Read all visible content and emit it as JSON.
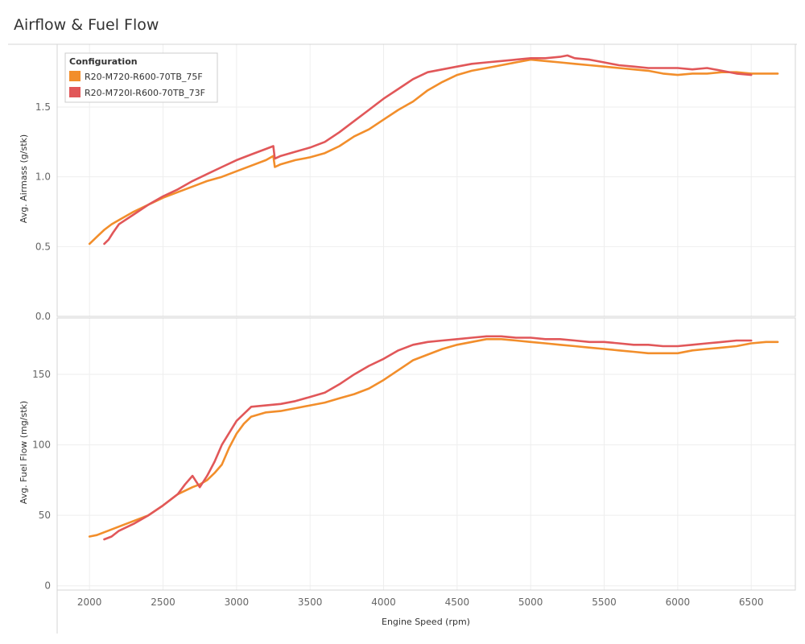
{
  "page_title": "Airflow & Fuel Flow",
  "colors": {
    "series_a": "#f28e2b",
    "series_b": "#e15759"
  },
  "chart_data": [
    {
      "type": "line",
      "ylabel": "Avg. Airmass (g/stk)",
      "xlabel": "Engine Speed (rpm)",
      "xlim": [
        1780,
        6800
      ],
      "ylim": [
        0,
        1.95
      ],
      "yticks": [
        0,
        0.5,
        1.0,
        1.5
      ],
      "ytick_labels": [
        "0.0",
        "0.5",
        "1.0",
        "1.5"
      ],
      "grid": true,
      "legend": {
        "title": "Configuration",
        "placement": "top-left",
        "entries": [
          "R20-M720-R600-70TB_75F",
          "R20-M720I-R600-70TB_73F"
        ]
      },
      "series": [
        {
          "name": "R20-M720-R600-70TB_75F",
          "color": "#f28e2b",
          "x": [
            2000,
            2050,
            2100,
            2150,
            2200,
            2300,
            2400,
            2500,
            2600,
            2700,
            2800,
            2900,
            3000,
            3100,
            3200,
            3250,
            3260,
            3300,
            3400,
            3500,
            3600,
            3700,
            3800,
            3900,
            4000,
            4100,
            4200,
            4300,
            4400,
            4500,
            4600,
            4700,
            4800,
            4900,
            5000,
            5100,
            5200,
            5300,
            5400,
            5500,
            5600,
            5700,
            5800,
            5900,
            6000,
            6100,
            6200,
            6300,
            6400,
            6500,
            6600,
            6680
          ],
          "values": [
            0.52,
            0.57,
            0.62,
            0.66,
            0.69,
            0.75,
            0.8,
            0.85,
            0.89,
            0.93,
            0.97,
            1.0,
            1.04,
            1.08,
            1.12,
            1.15,
            1.07,
            1.09,
            1.12,
            1.14,
            1.17,
            1.22,
            1.29,
            1.34,
            1.41,
            1.48,
            1.54,
            1.62,
            1.68,
            1.73,
            1.76,
            1.78,
            1.8,
            1.82,
            1.84,
            1.83,
            1.82,
            1.81,
            1.8,
            1.79,
            1.78,
            1.77,
            1.76,
            1.74,
            1.73,
            1.74,
            1.74,
            1.75,
            1.75,
            1.74,
            1.74,
            1.74
          ]
        },
        {
          "name": "R20-M720I-R600-70TB_73F",
          "color": "#e15759",
          "x": [
            2100,
            2130,
            2160,
            2200,
            2300,
            2400,
            2500,
            2600,
            2700,
            2800,
            2900,
            3000,
            3100,
            3200,
            3250,
            3260,
            3300,
            3400,
            3500,
            3600,
            3700,
            3800,
            3900,
            4000,
            4100,
            4200,
            4300,
            4400,
            4500,
            4600,
            4700,
            4800,
            4900,
            5000,
            5100,
            5200,
            5250,
            5300,
            5400,
            5500,
            5600,
            5700,
            5800,
            5900,
            6000,
            6100,
            6200,
            6300,
            6400,
            6500
          ],
          "values": [
            0.52,
            0.55,
            0.6,
            0.66,
            0.73,
            0.8,
            0.86,
            0.91,
            0.97,
            1.02,
            1.07,
            1.12,
            1.16,
            1.2,
            1.22,
            1.13,
            1.15,
            1.18,
            1.21,
            1.25,
            1.32,
            1.4,
            1.48,
            1.56,
            1.63,
            1.7,
            1.75,
            1.77,
            1.79,
            1.81,
            1.82,
            1.83,
            1.84,
            1.85,
            1.85,
            1.86,
            1.87,
            1.85,
            1.84,
            1.82,
            1.8,
            1.79,
            1.78,
            1.78,
            1.78,
            1.77,
            1.78,
            1.76,
            1.74,
            1.73
          ]
        }
      ]
    },
    {
      "type": "line",
      "ylabel": "Avg. Fuel Flow (mg/stk)",
      "xlabel": "Engine Speed (rpm)",
      "xlim": [
        1780,
        6800
      ],
      "ylim": [
        -3,
        190
      ],
      "yticks": [
        0,
        50,
        100,
        150
      ],
      "ytick_labels": [
        "0",
        "50",
        "100",
        "150"
      ],
      "xticks": [
        2000,
        2500,
        3000,
        3500,
        4000,
        4500,
        5000,
        5500,
        6000,
        6500
      ],
      "xtick_labels": [
        "2000",
        "2500",
        "3000",
        "3500",
        "4000",
        "4500",
        "5000",
        "5500",
        "6000",
        "6500"
      ],
      "grid": true,
      "series": [
        {
          "name": "R20-M720-R600-70TB_75F",
          "color": "#f28e2b",
          "x": [
            2000,
            2050,
            2100,
            2200,
            2300,
            2400,
            2500,
            2600,
            2700,
            2750,
            2800,
            2850,
            2900,
            2950,
            3000,
            3050,
            3100,
            3200,
            3300,
            3400,
            3500,
            3600,
            3700,
            3800,
            3900,
            4000,
            4100,
            4200,
            4300,
            4400,
            4500,
            4600,
            4700,
            4800,
            4900,
            5000,
            5100,
            5200,
            5300,
            5400,
            5500,
            5600,
            5700,
            5800,
            5900,
            6000,
            6100,
            6200,
            6300,
            6400,
            6500,
            6600,
            6680
          ],
          "values": [
            35,
            36,
            38,
            42,
            46,
            50,
            57,
            65,
            70,
            72,
            75,
            80,
            86,
            98,
            108,
            115,
            120,
            123,
            124,
            126,
            128,
            130,
            133,
            136,
            140,
            146,
            153,
            160,
            164,
            168,
            171,
            173,
            175,
            175,
            174,
            173,
            172,
            171,
            170,
            169,
            168,
            167,
            166,
            165,
            165,
            165,
            167,
            168,
            169,
            170,
            172,
            173,
            173
          ]
        },
        {
          "name": "R20-M720I-R600-70TB_73F",
          "color": "#e15759",
          "x": [
            2100,
            2150,
            2200,
            2300,
            2400,
            2500,
            2600,
            2650,
            2700,
            2750,
            2800,
            2850,
            2900,
            3000,
            3050,
            3100,
            3200,
            3300,
            3400,
            3500,
            3600,
            3700,
            3800,
            3900,
            4000,
            4100,
            4200,
            4300,
            4400,
            4500,
            4600,
            4700,
            4800,
            4900,
            5000,
            5100,
            5200,
            5300,
            5400,
            5500,
            5600,
            5700,
            5800,
            5900,
            6000,
            6100,
            6200,
            6300,
            6400,
            6500
          ],
          "values": [
            33,
            35,
            39,
            44,
            50,
            57,
            65,
            72,
            78,
            70,
            78,
            88,
            100,
            117,
            122,
            127,
            128,
            129,
            131,
            134,
            137,
            143,
            150,
            156,
            161,
            167,
            171,
            173,
            174,
            175,
            176,
            177,
            177,
            176,
            176,
            175,
            175,
            174,
            173,
            173,
            172,
            171,
            171,
            170,
            170,
            171,
            172,
            173,
            174,
            174
          ]
        }
      ]
    }
  ]
}
